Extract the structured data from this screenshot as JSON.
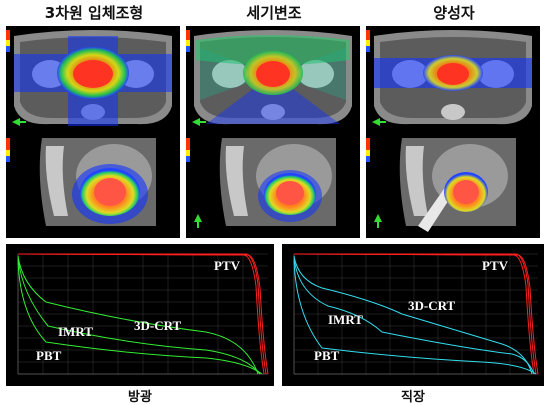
{
  "headers": {
    "col1": "3차원 입체조형",
    "col2": "세기변조",
    "col3": "양성자"
  },
  "dvh_bladder": {
    "caption": "방광",
    "labels": {
      "ptv": "PTV",
      "crt": "3D-CRT",
      "imrt": "IMRT",
      "pbt": "PBT"
    },
    "colors": {
      "ptv": "#ff2020",
      "organ": "#33ee33"
    }
  },
  "dvh_rectum": {
    "caption": "직장",
    "labels": {
      "ptv": "PTV",
      "crt": "3D-CRT",
      "imrt": "IMRT",
      "pbt": "PBT"
    },
    "colors": {
      "ptv": "#ff2020",
      "organ": "#33ddee"
    }
  }
}
